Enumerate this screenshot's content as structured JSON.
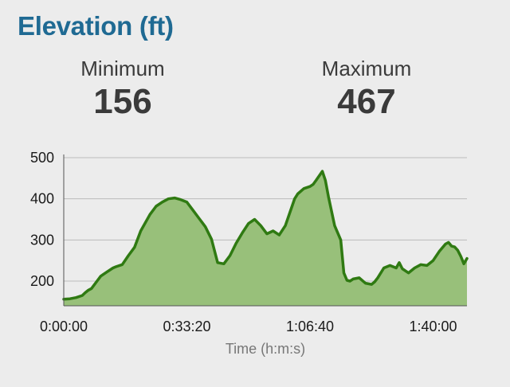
{
  "header": {
    "title": "Elevation (ft)"
  },
  "stats": {
    "min_label": "Minimum",
    "min_value": "156",
    "max_label": "Maximum",
    "max_value": "467"
  },
  "colors": {
    "title": "#1f6a93",
    "line": "#2f7a12",
    "fill": "#98c07a",
    "grid": "#bbbbbb",
    "axis": "#555555"
  },
  "chart_data": {
    "type": "area",
    "title": "Elevation (ft)",
    "xlabel": "Time (h:m:s)",
    "ylabel": "",
    "xlim": [
      0,
      6550
    ],
    "ylim": [
      140,
      500
    ],
    "yticks": [
      200,
      300,
      400,
      500
    ],
    "xticks": [
      {
        "value": 0,
        "label": "0:00:00"
      },
      {
        "value": 2000,
        "label": "0:33:20"
      },
      {
        "value": 4000,
        "label": "1:06:40"
      },
      {
        "value": 6000,
        "label": "1:40:00"
      }
    ],
    "grid": true,
    "series": [
      {
        "x": [
          0,
          100,
          200,
          300,
          350,
          400,
          450,
          550,
          600,
          700,
          800,
          850,
          950,
          1050,
          1150,
          1250,
          1400,
          1500,
          1600,
          1700,
          1800,
          1900,
          2000,
          2100,
          2200,
          2300,
          2400,
          2500,
          2600,
          2700,
          2800,
          2900,
          3000,
          3100,
          3200,
          3300,
          3400,
          3500,
          3600,
          3700,
          3750,
          3800,
          3900,
          4000,
          4050,
          4100,
          4200,
          4250,
          4300,
          4400,
          4500,
          4550,
          4600,
          4650,
          4700,
          4800,
          4900,
          5000,
          5050,
          5100,
          5200,
          5300,
          5400,
          5450,
          5500,
          5600,
          5700,
          5800,
          5900,
          6000,
          6100,
          6200,
          6250,
          6300,
          6350,
          6400,
          6450,
          6500,
          6550
        ],
        "values": [
          156,
          157,
          160,
          165,
          172,
          178,
          182,
          202,
          212,
          222,
          232,
          235,
          240,
          262,
          282,
          322,
          362,
          382,
          392,
          400,
          402,
          398,
          392,
          372,
          352,
          332,
          302,
          245,
          242,
          262,
          292,
          317,
          340,
          350,
          335,
          315,
          322,
          312,
          335,
          378,
          400,
          412,
          425,
          430,
          435,
          445,
          467,
          445,
          405,
          335,
          300,
          220,
          202,
          200,
          205,
          208,
          195,
          192,
          198,
          208,
          232,
          238,
          232,
          245,
          230,
          220,
          232,
          240,
          238,
          250,
          272,
          290,
          294,
          285,
          283,
          275,
          260,
          242,
          255
        ]
      }
    ]
  }
}
